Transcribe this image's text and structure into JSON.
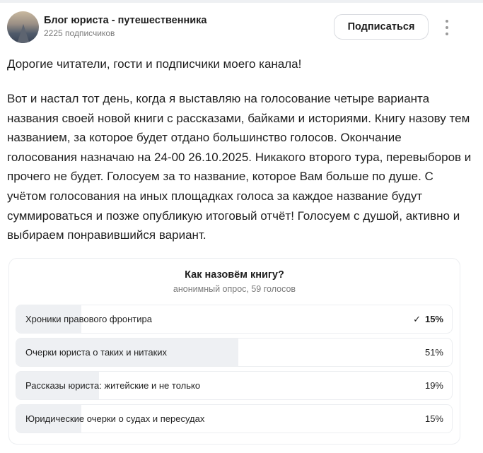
{
  "channel": {
    "title": "Блог юриста - путешественника",
    "subscribers": "2225 подписчиков",
    "subscribe_label": "Подписаться"
  },
  "post": {
    "greeting": "Дорогие читатели, гости и подписчики моего канала!",
    "body": "Вот и настал тот день, когда я выставляю на голосование четыре варианта названия своей новой книги с рассказами, байками и историями. Книгу назову тем названием, за которое будет отдано большинство голосов. Окончание голосования назначаю на 24-00 26.10.2025. Никакого второго тура, перевыборов и прочего не будет. Голосуем за то название, которое Вам больше по душе. С учётом голосования на иных площадках голоса за каждое название будут суммироваться и позже опубликую итоговый отчёт! Голосуем с душой, активно и выбираем понравившийся вариант."
  },
  "poll": {
    "title": "Как назовём книгу?",
    "subtitle": "анонимный опрос, 59 голосов",
    "options": [
      {
        "label": "Хроники правового фронтира",
        "percent": 15,
        "percent_text": "15%",
        "selected": true,
        "check": "✓"
      },
      {
        "label": "Очерки юриста о таких и нитаких",
        "percent": 51,
        "percent_text": "51%",
        "selected": false
      },
      {
        "label": "Рассказы юриста: житейские и не только",
        "percent": 19,
        "percent_text": "19%",
        "selected": false
      },
      {
        "label": "Юридические очерки о судах и пересудах",
        "percent": 15,
        "percent_text": "15%",
        "selected": false
      }
    ],
    "fill_color": "#eef0f3"
  }
}
